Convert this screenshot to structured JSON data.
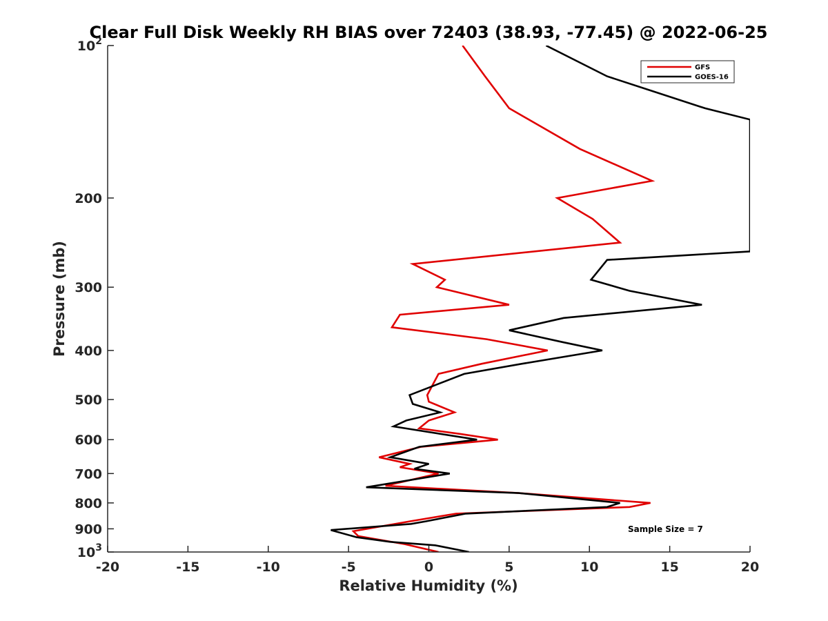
{
  "chart_data": {
    "type": "line",
    "title": "Clear Full Disk Weekly RH BIAS over 72403 (38.93, -77.45) @ 2022-06-25",
    "xlabel": "Relative Humidity (%)",
    "ylabel": "Pressure (mb)",
    "xlim": [
      -20,
      20
    ],
    "ylim": [
      100,
      1000
    ],
    "yscale": "log",
    "yreversed": true,
    "x_ticks": [
      -20,
      -15,
      -10,
      -5,
      0,
      5,
      10,
      15,
      20
    ],
    "x_tick_labels": [
      "-20",
      "-15",
      "-10",
      "-5",
      "0",
      "5",
      "10",
      "15",
      "20"
    ],
    "y_ticks": [
      100,
      200,
      300,
      400,
      500,
      600,
      700,
      800,
      900,
      1000
    ],
    "y_tick_labels": [
      {
        "base": "10",
        "exp": "2"
      },
      {
        "base": "200",
        "exp": ""
      },
      {
        "base": "300",
        "exp": ""
      },
      {
        "base": "400",
        "exp": ""
      },
      {
        "base": "500",
        "exp": ""
      },
      {
        "base": "600",
        "exp": ""
      },
      {
        "base": "700",
        "exp": ""
      },
      {
        "base": "800",
        "exp": ""
      },
      {
        "base": "900",
        "exp": ""
      },
      {
        "base": "10",
        "exp": "3"
      }
    ],
    "grid": false,
    "legend_position": "top-right",
    "annotation": "Sample Size = 7",
    "series": [
      {
        "name": "GFS",
        "color": "#e00000",
        "points": [
          [
            2.1,
            100
          ],
          [
            3.5,
            115
          ],
          [
            5.0,
            133
          ],
          [
            9.4,
            160
          ],
          [
            13.9,
            185
          ],
          [
            8.0,
            200
          ],
          [
            10.2,
            220
          ],
          [
            11.9,
            245
          ],
          [
            -1.0,
            270
          ],
          [
            1.0,
            290
          ],
          [
            0.5,
            300
          ],
          [
            5.0,
            325
          ],
          [
            -1.8,
            340
          ],
          [
            -2.3,
            360
          ],
          [
            3.6,
            380
          ],
          [
            7.4,
            400
          ],
          [
            3.3,
            425
          ],
          [
            0.6,
            445
          ],
          [
            -0.1,
            490
          ],
          [
            0.0,
            505
          ],
          [
            1.6,
            530
          ],
          [
            0.0,
            550
          ],
          [
            -0.6,
            570
          ],
          [
            2.0,
            585
          ],
          [
            4.3,
            600
          ],
          [
            -0.5,
            620
          ],
          [
            -3.1,
            650
          ],
          [
            -1.2,
            670
          ],
          [
            -1.8,
            680
          ],
          [
            0.6,
            700
          ],
          [
            -2.7,
            740
          ],
          [
            5.6,
            765
          ],
          [
            13.8,
            800
          ],
          [
            12.5,
            815
          ],
          [
            1.7,
            840
          ],
          [
            -1.2,
            870
          ],
          [
            -4.7,
            910
          ],
          [
            -4.4,
            930
          ],
          [
            -1.5,
            965
          ],
          [
            0.6,
            1000
          ]
        ]
      },
      {
        "name": "GOES-16",
        "color": "#000000",
        "points": [
          [
            7.3,
            100
          ],
          [
            11.1,
            115
          ],
          [
            17.2,
            133
          ],
          [
            20.0,
            140
          ],
          [
            20.0,
            255
          ],
          [
            11.1,
            265
          ],
          [
            10.1,
            290
          ],
          [
            12.5,
            305
          ],
          [
            17.0,
            325
          ],
          [
            8.4,
            345
          ],
          [
            5.0,
            365
          ],
          [
            8.3,
            385
          ],
          [
            10.8,
            400
          ],
          [
            5.8,
            425
          ],
          [
            2.2,
            445
          ],
          [
            -1.2,
            490
          ],
          [
            -1.0,
            510
          ],
          [
            0.7,
            530
          ],
          [
            -1.4,
            550
          ],
          [
            -2.2,
            565
          ],
          [
            3.0,
            600
          ],
          [
            -0.6,
            620
          ],
          [
            -2.4,
            650
          ],
          [
            0.0,
            670
          ],
          [
            -0.9,
            685
          ],
          [
            1.3,
            700
          ],
          [
            -3.9,
            745
          ],
          [
            5.6,
            765
          ],
          [
            11.9,
            800
          ],
          [
            11.1,
            815
          ],
          [
            2.3,
            840
          ],
          [
            -0.2,
            870
          ],
          [
            -1.1,
            880
          ],
          [
            -6.1,
            905
          ],
          [
            -4.5,
            935
          ],
          [
            -2.4,
            955
          ],
          [
            0.4,
            970
          ],
          [
            2.5,
            1000
          ]
        ]
      }
    ]
  }
}
